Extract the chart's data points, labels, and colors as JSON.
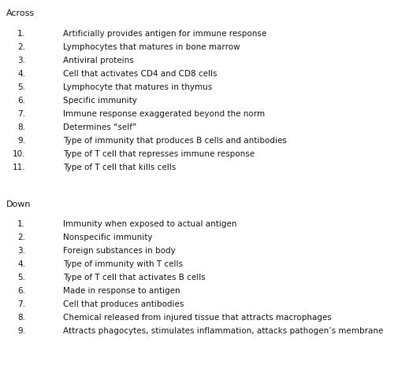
{
  "title_across": "Across",
  "title_down": "Down",
  "across_clues_num": [
    "1.",
    "2.",
    "3.",
    "4.",
    "5.",
    "6.",
    "7.",
    "8.",
    "9.",
    "10.",
    "11."
  ],
  "across_clues_text": [
    "Artificially provides antigen for immune response",
    "Lymphocytes that matures in bone marrow",
    "Antiviral proteins",
    "Cell that activates CD4 and CD8 cells",
    "Lymphocyte that matures in thymus",
    "Specific immunity",
    "Immune response exaggerated beyond the norm",
    "Determines “self”",
    "Type of immunity that produces B cells and antibodies",
    "Type of T cell that represses immune response",
    "Type of T cell that kills cells"
  ],
  "down_clues_num": [
    "1.",
    "2.",
    "3.",
    "4.",
    "5.",
    "6.",
    "7.",
    "8.",
    "9."
  ],
  "down_clues_text": [
    "Immunity when exposed to actual antigen",
    "Nonspecific immunity",
    "Foreign substances in body",
    "Type of immunity with T cells",
    "Type of T cell that activates B cells",
    "Made in response to antigen",
    "Cell that produces antibodies",
    "Chemical released from injured tissue that attracts macrophages",
    "Attracts phagocytes, stimulates inflammation, attacks pathogen’s membrane"
  ],
  "bg_color": "#ffffff",
  "text_color": "#1a1a1a",
  "font_size": 7.5,
  "header_font_size": 8.0,
  "fig_width": 5.19,
  "fig_height": 4.96,
  "dpi": 100
}
